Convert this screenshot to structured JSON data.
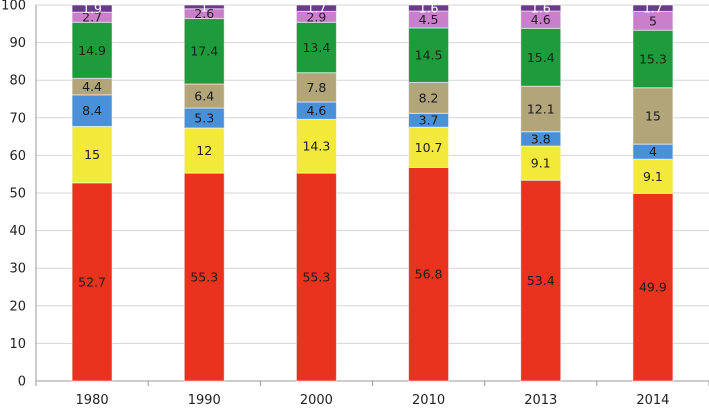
{
  "chart_data": {
    "type": "bar",
    "stacked": true,
    "categories": [
      "1980",
      "1990",
      "2000",
      "2010",
      "2013",
      "2014"
    ],
    "ylim": [
      0,
      100
    ],
    "yticks": [
      0,
      10,
      20,
      30,
      40,
      50,
      60,
      70,
      80,
      90,
      100
    ],
    "grid": true,
    "legend": "none",
    "series": [
      {
        "color": "#e8331e",
        "label_color": "#2a1a1a",
        "values": [
          52.7,
          55.3,
          55.3,
          56.8,
          53.4,
          49.9
        ]
      },
      {
        "color": "#f2e93a",
        "label_color": "#222222",
        "values": [
          15,
          12,
          14.3,
          10.7,
          9.1,
          9.1
        ]
      },
      {
        "color": "#4a90d8",
        "label_color": "#1a1a1a",
        "values": [
          8.4,
          5.3,
          4.6,
          3.7,
          3.8,
          4
        ]
      },
      {
        "color": "#b3a57a",
        "label_color": "#1a1a1a",
        "values": [
          4.4,
          6.4,
          7.8,
          8.2,
          12.1,
          15
        ]
      },
      {
        "color": "#1f9a3c",
        "label_color": "#0d2a12",
        "values": [
          14.9,
          17.4,
          13.4,
          14.5,
          15.4,
          15.3
        ]
      },
      {
        "color": "#c97fc9",
        "label_color": "#2a1a2a",
        "values": [
          2.7,
          2.6,
          2.9,
          4.5,
          4.6,
          5
        ]
      },
      {
        "color": "#6a3a8c",
        "label_color": "#ffffff",
        "values": [
          1.9,
          1,
          1.7,
          1.6,
          1.6,
          1.7
        ]
      }
    ]
  }
}
